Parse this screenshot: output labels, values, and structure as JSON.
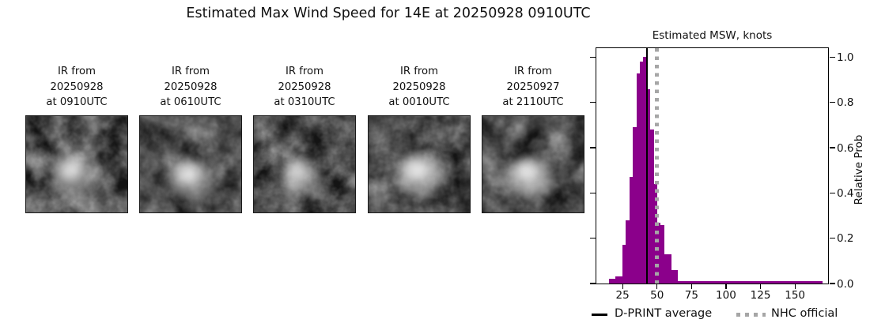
{
  "header": {
    "title": "Estimated Max Wind Speed for 14E at 20250928 0910UTC"
  },
  "panels": [
    {
      "label": "IR from\n20250928\nat 0910UTC",
      "image": "ir-satellite-image"
    },
    {
      "label": "IR from\n20250928\nat 0610UTC",
      "image": "ir-satellite-image"
    },
    {
      "label": "IR from\n20250928\nat 0310UTC",
      "image": "ir-satellite-image"
    },
    {
      "label": "IR from\n20250928\nat 0010UTC",
      "image": "ir-satellite-image"
    },
    {
      "label": "IR from\n20250927\nat 2110UTC",
      "image": "ir-satellite-image"
    }
  ],
  "chart_data": {
    "type": "bar",
    "title": "Estimated MSW, knots",
    "xlabel": "",
    "ylabel": "Relative Prob",
    "xlim": [
      6,
      174
    ],
    "ylim": [
      0,
      1.04
    ],
    "x_ticks": [
      25,
      50,
      75,
      100,
      125,
      150
    ],
    "y_ticks": [
      0.0,
      0.2,
      0.4,
      0.6,
      0.8,
      1.0
    ],
    "y_tick_labels": [
      "0.0",
      "0.2",
      "0.4",
      "0.6",
      "0.8",
      "1.0"
    ],
    "grid": false,
    "bar_color": "#8B008B",
    "bins": [
      {
        "x0": 15.0,
        "x1": 17.5,
        "h": 0.02
      },
      {
        "x0": 17.5,
        "x1": 20.0,
        "h": 0.02
      },
      {
        "x0": 20.0,
        "x1": 22.5,
        "h": 0.03
      },
      {
        "x0": 22.5,
        "x1": 25.0,
        "h": 0.03
      },
      {
        "x0": 25.0,
        "x1": 27.5,
        "h": 0.17
      },
      {
        "x0": 27.5,
        "x1": 30.0,
        "h": 0.28
      },
      {
        "x0": 30.0,
        "x1": 32.5,
        "h": 0.47
      },
      {
        "x0": 32.5,
        "x1": 35.0,
        "h": 0.69
      },
      {
        "x0": 35.0,
        "x1": 37.5,
        "h": 0.93
      },
      {
        "x0": 37.5,
        "x1": 40.0,
        "h": 0.98
      },
      {
        "x0": 40.0,
        "x1": 42.5,
        "h": 1.0
      },
      {
        "x0": 42.5,
        "x1": 45.0,
        "h": 0.86
      },
      {
        "x0": 45.0,
        "x1": 47.5,
        "h": 0.68
      },
      {
        "x0": 47.5,
        "x1": 50.0,
        "h": 0.44
      },
      {
        "x0": 50.0,
        "x1": 52.5,
        "h": 0.27
      },
      {
        "x0": 52.5,
        "x1": 55.0,
        "h": 0.26
      },
      {
        "x0": 55.0,
        "x1": 57.5,
        "h": 0.13
      },
      {
        "x0": 57.5,
        "x1": 60.0,
        "h": 0.13
      },
      {
        "x0": 60.0,
        "x1": 62.5,
        "h": 0.06
      },
      {
        "x0": 62.5,
        "x1": 65.0,
        "h": 0.06
      },
      {
        "x0": 65.0,
        "x1": 170.0,
        "h": 0.01
      }
    ],
    "lines": [
      {
        "name": "D-PRINT average",
        "value": 42.5,
        "style": "solid",
        "color": "#000000"
      },
      {
        "name": "NHC official",
        "value": 50.0,
        "style": "dotted",
        "color": "#a6a6a6"
      }
    ],
    "legend": [
      {
        "label": "D-PRINT average",
        "style": "solid"
      },
      {
        "label": "NHC official",
        "style": "dotted"
      }
    ],
    "legend_position": "below"
  }
}
